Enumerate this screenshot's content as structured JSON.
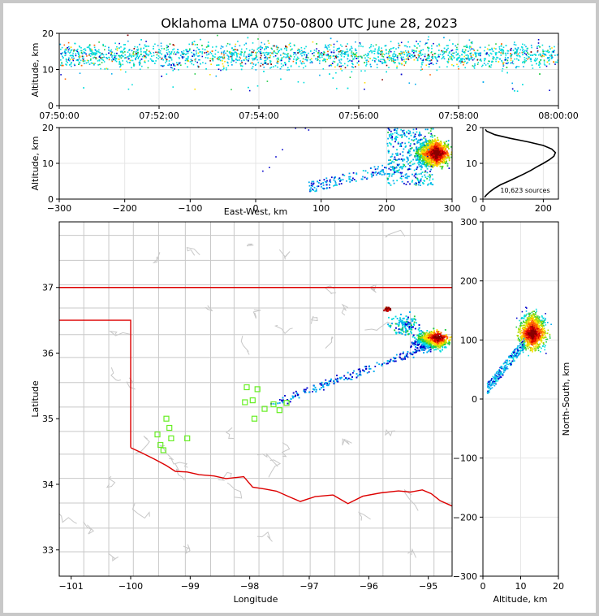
{
  "title": "Oklahoma LMA 0750-0800 UTC June 28, 2023",
  "colors": {
    "state_border": "#dd0000",
    "county_lines": "#c8c8c8",
    "stations": "#66ee22",
    "density_scale": [
      "#0000cc",
      "#00aaee",
      "#00dddd",
      "#22cc44",
      "#aadd00",
      "#ffdd00",
      "#ff6600",
      "#dd0000",
      "#880000"
    ]
  },
  "chart_data": [
    {
      "name": "altitude-vs-time",
      "type": "heatmap",
      "xlabel": "",
      "ylabel": "Altitude, km",
      "x_tick_labels": [
        "07:50:00",
        "07:52:00",
        "07:54:00",
        "07:56:00",
        "07:58:00",
        "08:00:00"
      ],
      "xlim_minutes": [
        0,
        10
      ],
      "ylim": [
        0,
        20
      ],
      "y_ticks": [
        0,
        10,
        20
      ],
      "grid": true
    },
    {
      "name": "altitude-vs-east-west",
      "type": "heatmap",
      "xlabel": "East-West, km",
      "ylabel": "Altitude, km",
      "xlim": [
        -300,
        300
      ],
      "x_ticks": [
        -300,
        -200,
        -100,
        0,
        100,
        200,
        300
      ],
      "ylim": [
        0,
        20
      ],
      "y_ticks": [
        0,
        10,
        20
      ],
      "grid": true
    },
    {
      "name": "altitude-histogram",
      "type": "line",
      "annotation": "10,623 sources",
      "xlim": [
        0,
        250
      ],
      "x_ticks": [
        0,
        200
      ],
      "ylim": [
        0,
        20
      ],
      "y_ticks": [
        0,
        10,
        20
      ],
      "altitude_km": [
        0.5,
        1,
        2,
        3,
        4,
        5,
        6,
        7,
        8,
        9,
        10,
        11,
        12,
        13,
        14,
        15,
        16,
        17,
        18,
        19,
        19.5
      ],
      "source_counts": [
        5,
        10,
        22,
        38,
        58,
        85,
        110,
        135,
        158,
        178,
        200,
        220,
        235,
        240,
        228,
        200,
        150,
        90,
        40,
        12,
        8
      ],
      "grid": true
    },
    {
      "name": "plan-view-map",
      "type": "heatmap",
      "xlabel": "Longitude",
      "ylabel": "Latitude",
      "xlim": [
        -101.2,
        -94.6
      ],
      "x_ticks": [
        -101,
        -100,
        -99,
        -98,
        -97,
        -96,
        -95
      ],
      "ylim": [
        32.6,
        38.0
      ],
      "y_ticks": [
        33,
        34,
        35,
        36,
        37
      ],
      "stations": [
        [
          -98.05,
          35.48
        ],
        [
          -97.87,
          35.45
        ],
        [
          -97.95,
          35.28
        ],
        [
          -98.08,
          35.25
        ],
        [
          -97.75,
          35.15
        ],
        [
          -97.6,
          35.22
        ],
        [
          -97.5,
          35.13
        ],
        [
          -97.38,
          35.24
        ],
        [
          -97.92,
          35.0
        ],
        [
          -99.4,
          35.0
        ],
        [
          -99.35,
          34.86
        ],
        [
          -99.55,
          34.76
        ],
        [
          -99.32,
          34.7
        ],
        [
          -99.05,
          34.7
        ],
        [
          -99.5,
          34.6
        ],
        [
          -99.45,
          34.52
        ]
      ],
      "grid": false
    },
    {
      "name": "north-south-vs-altitude",
      "type": "heatmap",
      "xlabel": "Altitude, km",
      "ylabel": "North-South, km",
      "xlim": [
        0,
        20
      ],
      "x_ticks": [
        0,
        10,
        20
      ],
      "ylim": [
        -300,
        300
      ],
      "y_ticks": [
        -300,
        -200,
        -100,
        0,
        100,
        200,
        300
      ],
      "grid": true
    }
  ]
}
